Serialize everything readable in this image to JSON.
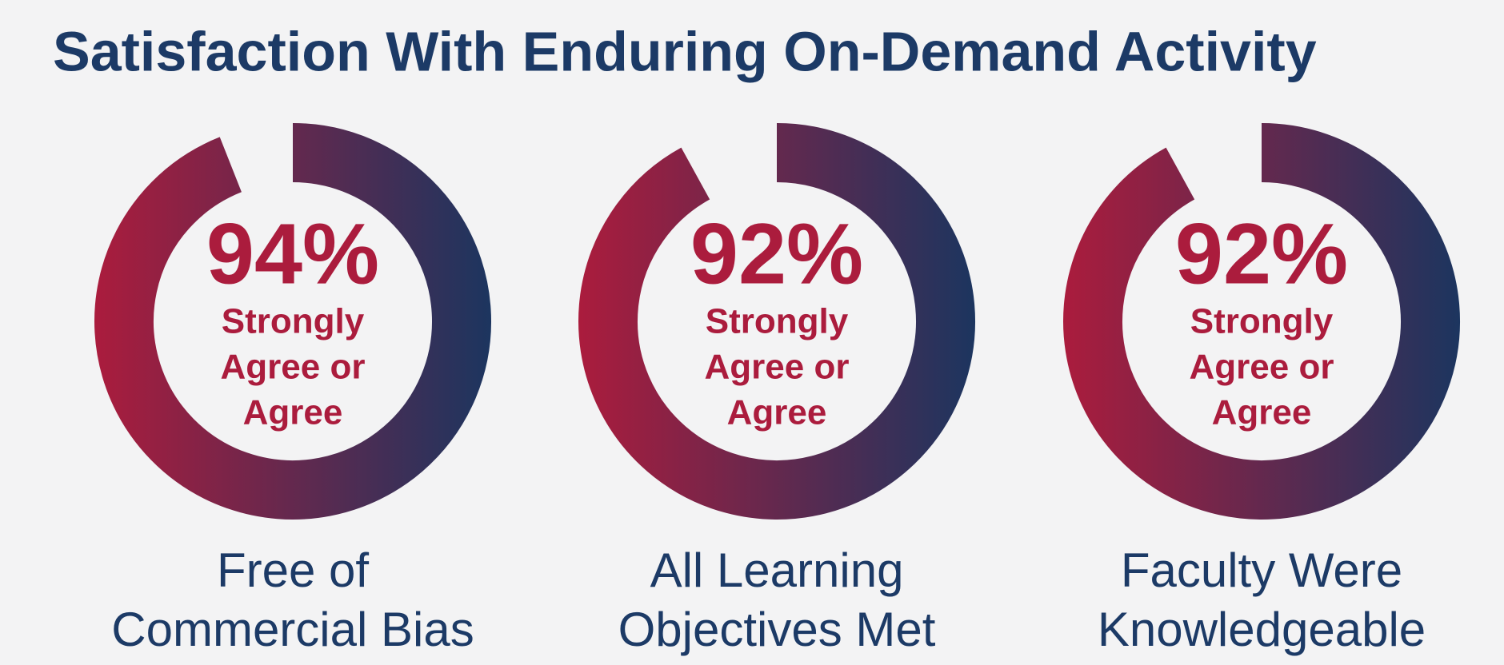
{
  "title": "Satisfaction With Enduring On-Demand Activity",
  "chart_data": [
    {
      "type": "donut",
      "value": 94,
      "value_label": "94%",
      "ylim": [
        0,
        100
      ],
      "label_lines": [
        "Strongly",
        "Agree or",
        "Agree"
      ],
      "caption_lines": [
        "Free of",
        "Commercial Bias"
      ],
      "colors": [
        "#ab1c3d",
        "#1c355f"
      ]
    },
    {
      "type": "donut",
      "value": 92,
      "value_label": "92%",
      "ylim": [
        0,
        100
      ],
      "label_lines": [
        "Strongly",
        "Agree or",
        "Agree"
      ],
      "caption_lines": [
        "All Learning",
        "Objectives Met"
      ],
      "colors": [
        "#ab1c3d",
        "#1c355f"
      ]
    },
    {
      "type": "donut",
      "value": 92,
      "value_label": "92%",
      "ylim": [
        0,
        100
      ],
      "label_lines": [
        "Strongly",
        "Agree or",
        "Agree"
      ],
      "caption_lines": [
        "Faculty Were",
        "Knowledgeable"
      ],
      "colors": [
        "#ab1c3d",
        "#1c355f"
      ]
    }
  ]
}
